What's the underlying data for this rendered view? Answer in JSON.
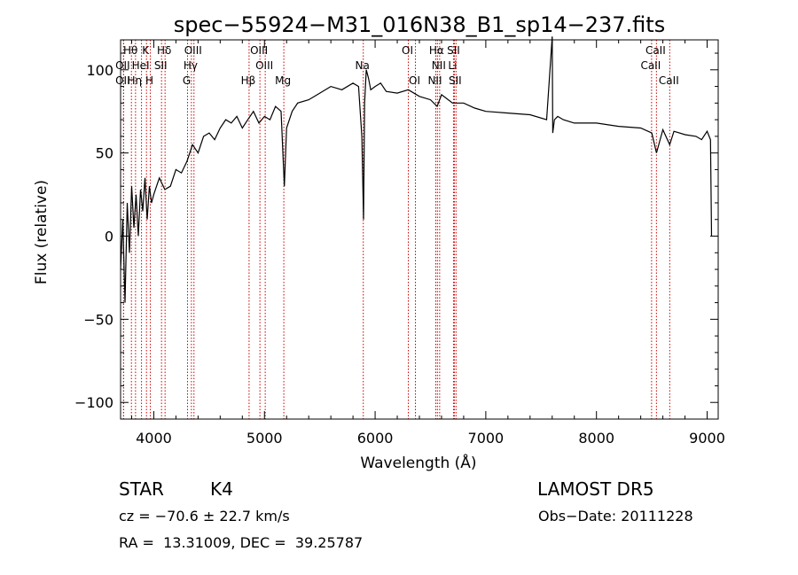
{
  "chart_data": {
    "type": "line",
    "title": "spec−55924−M31_016N38_B1_sp14−237.fits",
    "xlabel": "Wavelength (Å)",
    "ylabel": "Flux (relative)",
    "xlim": [
      3700,
      9100
    ],
    "ylim": [
      -110,
      118
    ],
    "xticks": [
      4000,
      5000,
      6000,
      7000,
      8000,
      9000
    ],
    "xtick_labels": [
      "4000",
      "5000",
      "6000",
      "7000",
      "8000",
      "9000"
    ],
    "yticks": [
      -100,
      -50,
      0,
      50,
      100
    ],
    "ytick_labels": [
      "−100",
      "−50",
      "0",
      "50",
      "100"
    ],
    "grid": false,
    "line_color": "#000000",
    "marker_color": "#cc0000",
    "series": [
      {
        "x": [
          3700,
          3720,
          3740,
          3760,
          3780,
          3800,
          3820,
          3840,
          3860,
          3880,
          3900,
          3920,
          3940,
          3960,
          3980,
          4000,
          4050,
          4100,
          4150,
          4200,
          4250,
          4300,
          4350,
          4400,
          4450,
          4500,
          4550,
          4600,
          4650,
          4700,
          4750,
          4800,
          4850,
          4900,
          4950,
          5000,
          5050,
          5100,
          5150,
          5180,
          5200,
          5250,
          5300,
          5400,
          5500,
          5600,
          5700,
          5800,
          5850,
          5880,
          5895,
          5905,
          5920,
          5940,
          5960,
          6000,
          6050,
          6100,
          6200,
          6300,
          6400,
          6500,
          6560,
          6600,
          6700,
          6800,
          6900,
          7000,
          7200,
          7400,
          7550,
          7600,
          7605,
          7620,
          7650,
          7700,
          7800,
          8000,
          8200,
          8400,
          8500,
          8542,
          8600,
          8662,
          8700,
          8800,
          8900,
          8950,
          9000,
          9030,
          9040
        ],
        "y": [
          -20,
          10,
          -40,
          20,
          -10,
          30,
          5,
          25,
          0,
          28,
          15,
          35,
          10,
          30,
          20,
          25,
          35,
          28,
          30,
          40,
          38,
          45,
          55,
          50,
          60,
          62,
          58,
          65,
          70,
          68,
          72,
          65,
          70,
          75,
          68,
          72,
          70,
          78,
          75,
          30,
          65,
          75,
          80,
          82,
          86,
          90,
          88,
          92,
          90,
          60,
          10,
          80,
          100,
          95,
          88,
          90,
          92,
          87,
          86,
          88,
          84,
          82,
          78,
          85,
          80,
          80,
          77,
          75,
          74,
          73,
          70,
          120,
          62,
          70,
          72,
          70,
          68,
          68,
          66,
          65,
          62,
          50,
          64,
          55,
          63,
          61,
          60,
          58,
          63,
          58,
          0
        ]
      }
    ],
    "lines": [
      {
        "name": "Hθ",
        "x": 3798,
        "row": 1
      },
      {
        "name": "K",
        "x": 3934,
        "row": 1
      },
      {
        "name": "Hδ",
        "x": 4102,
        "row": 1
      },
      {
        "name": "OIII",
        "x": 4363,
        "row": 1
      },
      {
        "name": "OIII",
        "x": 4959,
        "row": 1
      },
      {
        "name": "OI",
        "x": 6300,
        "row": 1
      },
      {
        "name": "Hα",
        "x": 6563,
        "row": 1
      },
      {
        "name": "SII",
        "x": 6716,
        "row": 1
      },
      {
        "name": "CaII",
        "x": 8542,
        "row": 1
      },
      {
        "name": "OII",
        "x": 3727,
        "row": 2
      },
      {
        "name": "HeI",
        "x": 3889,
        "row": 2
      },
      {
        "name": "SII",
        "x": 4070,
        "row": 2
      },
      {
        "name": "Hγ",
        "x": 4340,
        "row": 2
      },
      {
        "name": "OIII",
        "x": 5007,
        "row": 2
      },
      {
        "name": "Na",
        "x": 5893,
        "row": 2
      },
      {
        "name": "NII",
        "x": 6583,
        "row": 2
      },
      {
        "name": "Li",
        "x": 6708,
        "row": 2
      },
      {
        "name": "CaII",
        "x": 8498,
        "row": 2
      },
      {
        "name": "OII",
        "x": 3727,
        "row": 3
      },
      {
        "name": "Hη",
        "x": 3835,
        "row": 3
      },
      {
        "name": "H",
        "x": 3969,
        "row": 3
      },
      {
        "name": "G",
        "x": 4305,
        "row": 3
      },
      {
        "name": "Hβ",
        "x": 4861,
        "row": 3
      },
      {
        "name": "Mg",
        "x": 5175,
        "row": 3
      },
      {
        "name": "OI",
        "x": 6364,
        "row": 3
      },
      {
        "name": "NII",
        "x": 6548,
        "row": 3
      },
      {
        "name": "SII",
        "x": 6731,
        "row": 3
      },
      {
        "name": "CaII",
        "x": 8662,
        "row": 3
      }
    ]
  },
  "info": {
    "class": "STAR",
    "subclass": "K4",
    "survey": "LAMOST DR5",
    "cz": "cz = −70.6 ± 22.7 km/s",
    "obs_date": "Obs−Date: 20111228",
    "coords": "RA =  13.31009, DEC =  39.25787"
  }
}
